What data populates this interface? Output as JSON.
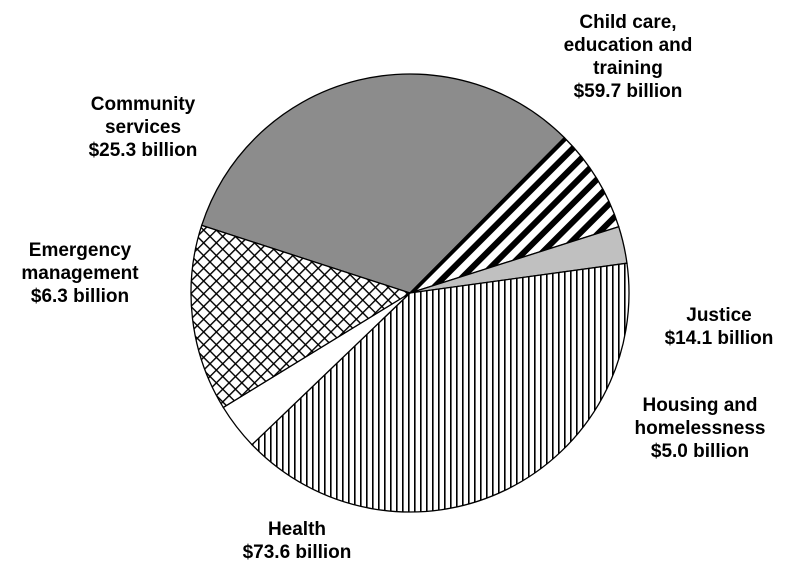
{
  "chart_data": {
    "type": "pie",
    "title": "",
    "unit": "$ billion",
    "start_angle_deg": -162,
    "direction": "clockwise",
    "slices": [
      {
        "label_lines": [
          "Child care,",
          "education and",
          "training",
          "$59.7 billion"
        ],
        "category": "Child care, education and training",
        "value": 59.7,
        "value_label": "$59.7 billion",
        "fill": "#8c8c8c",
        "pattern": "solid"
      },
      {
        "label_lines": [
          "Justice",
          "$14.1 billion"
        ],
        "category": "Justice",
        "value": 14.1,
        "value_label": "$14.1 billion",
        "fill": "#000000",
        "pattern": "wide-diagonal-stripes"
      },
      {
        "label_lines": [
          "Housing and",
          "homelessness",
          "$5.0 billion"
        ],
        "category": "Housing and homelessness",
        "value": 5.0,
        "value_label": "$5.0 billion",
        "fill": "#c0c0c0",
        "pattern": "solid"
      },
      {
        "label_lines": [
          "Health",
          "$73.6 billion"
        ],
        "category": "Health",
        "value": 73.6,
        "value_label": "$73.6 billion",
        "fill": "#000000",
        "pattern": "vertical-lines"
      },
      {
        "label_lines": [
          "Emergency",
          "management",
          "$6.3 billion"
        ],
        "category": "Emergency management",
        "value": 6.3,
        "value_label": "$6.3 billion",
        "fill": "#ffffff",
        "pattern": "solid"
      },
      {
        "label_lines": [
          "Community",
          "services",
          "$25.3 billion"
        ],
        "category": "Community services",
        "value": 25.3,
        "value_label": "$25.3 billion",
        "fill": "#000000",
        "pattern": "crosshatch"
      }
    ]
  }
}
